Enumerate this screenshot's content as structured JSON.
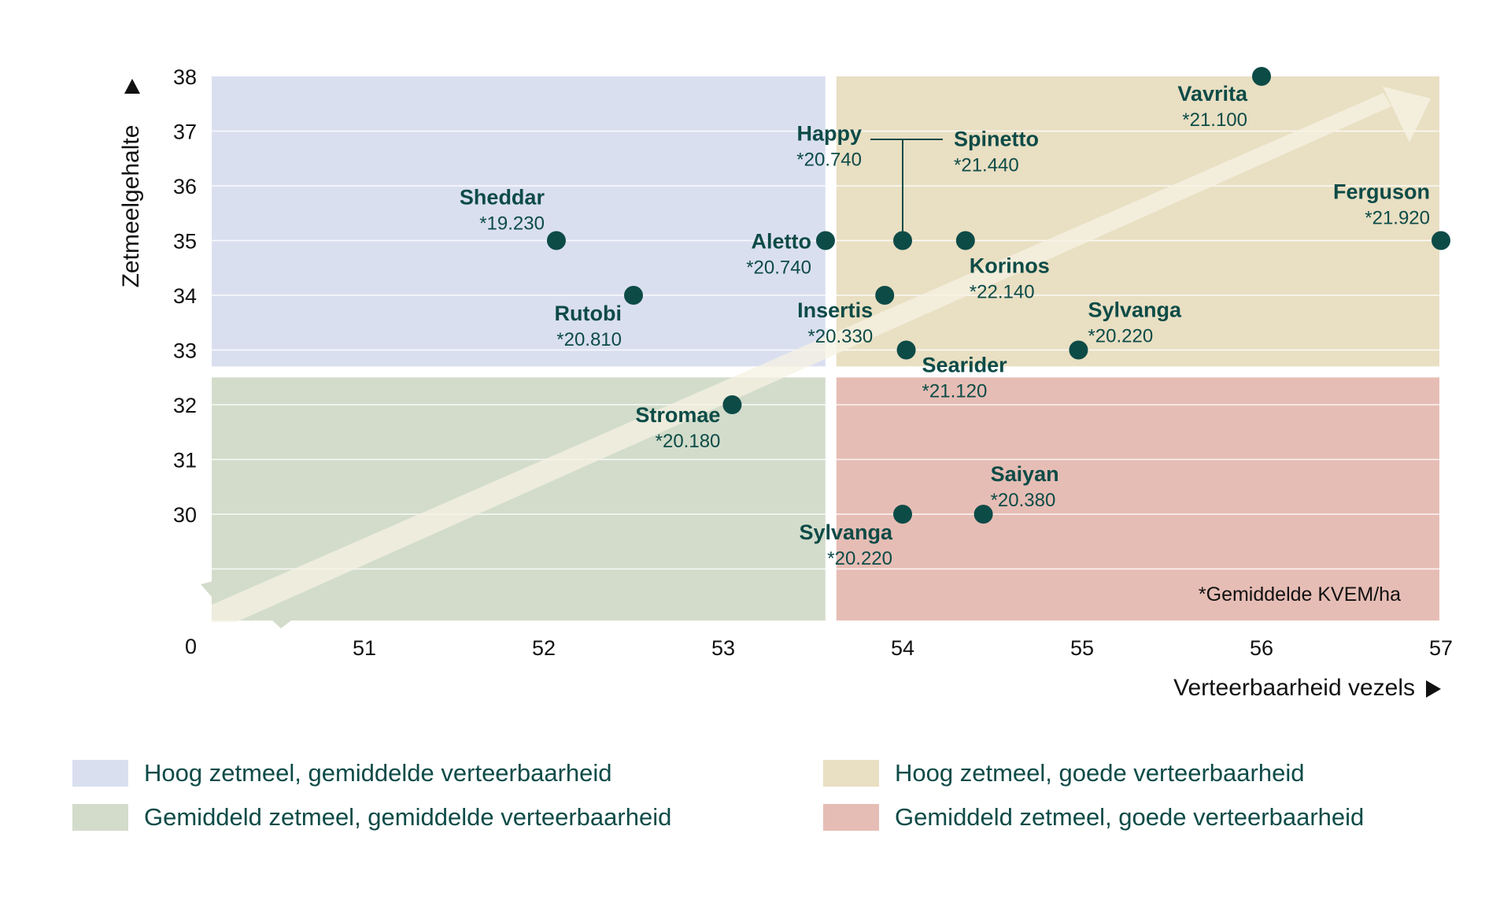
{
  "chart_data": {
    "type": "scatter",
    "title": "",
    "xlabel": "Verteerbaarheid vezels",
    "ylabel": "Zetmeelgehalte",
    "xlim": [
      50.15,
      57
    ],
    "ylim": [
      27.4,
      38
    ],
    "x_ticks": [
      "51",
      "52",
      "53",
      "54",
      "55",
      "56",
      "57"
    ],
    "x_tick_values": [
      51,
      52,
      53,
      54,
      55,
      56,
      57
    ],
    "y_ticks": [
      "38",
      "37",
      "36",
      "35",
      "34",
      "33",
      "32",
      "31",
      "30"
    ],
    "y_tick_values": [
      38,
      37,
      36,
      35,
      34,
      33,
      32,
      31,
      30
    ],
    "y_axis_origin_label": "0",
    "y_axis_break": true,
    "grid": true,
    "quadrant_split": {
      "x": 53.6,
      "y": 32.6
    },
    "quadrants": [
      {
        "name": "Hoog zetmeel, gemiddelde verteerbaarheid",
        "position": "top-left",
        "color": "#dadff0"
      },
      {
        "name": "Hoog zetmeel, goede verteerbaarheid",
        "position": "top-right",
        "color": "#e9dfc3"
      },
      {
        "name": "Gemiddeld zetmeel, gemiddelde verteerbaarheid",
        "position": "bottom-left",
        "color": "#d3dccb"
      },
      {
        "name": "Gemiddeld zetmeel, goede verteerbaarheid",
        "position": "bottom-right",
        "color": "#e6bdb5"
      }
    ],
    "trend_arrow": {
      "direction": "bottom-left to top-right",
      "color": "#f6f1e3"
    },
    "points": [
      {
        "name": "Sheddar",
        "x": 52.07,
        "y": 35,
        "value": "*19.230"
      },
      {
        "name": "Rutobi",
        "x": 52.5,
        "y": 34,
        "value": "*20.810"
      },
      {
        "name": "Stromae",
        "x": 53.05,
        "y": 32,
        "value": "*20.180"
      },
      {
        "name": "Aletto",
        "x": 53.57,
        "y": 35,
        "value": "*20.740"
      },
      {
        "name": "Happy",
        "x": 54.0,
        "y": 35,
        "value": "*20.740"
      },
      {
        "name": "Spinetto",
        "x": 54.0,
        "y": 35,
        "value": "*21.440"
      },
      {
        "name": "Korinos",
        "x": 54.35,
        "y": 35,
        "value": "*22.140"
      },
      {
        "name": "Insertis",
        "x": 53.9,
        "y": 34,
        "value": "*20.330"
      },
      {
        "name": "Searider",
        "x": 54.02,
        "y": 33,
        "value": "*21.120"
      },
      {
        "name": "Sylvanga",
        "x": 54.98,
        "y": 33,
        "value": "*20.220"
      },
      {
        "name": "Sylvanga",
        "x": 54.0,
        "y": 30,
        "value": "*20.220"
      },
      {
        "name": "Saiyan",
        "x": 54.45,
        "y": 30,
        "value": "*20.380"
      },
      {
        "name": "Vavrita",
        "x": 56.0,
        "y": 38,
        "value": "*21.100"
      },
      {
        "name": "Ferguson",
        "x": 57.0,
        "y": 35,
        "value": "*21.920"
      }
    ],
    "shared_marker_groups": [
      [
        "Happy",
        "Spinetto"
      ]
    ],
    "footnote": "*Gemiddelde KVEM/ha",
    "legend_position": "bottom",
    "colors": {
      "marker": "#0d4b47",
      "label": "#0d4b47",
      "axis_text": "#111111"
    }
  },
  "legend": {
    "items": [
      {
        "label": "Hoog zetmeel, gemiddelde verteerbaarheid",
        "color": "#dadff0"
      },
      {
        "label": "Gemiddeld zetmeel, gemiddelde verteerbaarheid",
        "color": "#d3dccb"
      },
      {
        "label": "Hoog zetmeel, goede verteerbaarheid",
        "color": "#e9dfc3"
      },
      {
        "label": "Gemiddeld zetmeel, goede verteerbaarheid",
        "color": "#e6bdb5"
      }
    ]
  }
}
